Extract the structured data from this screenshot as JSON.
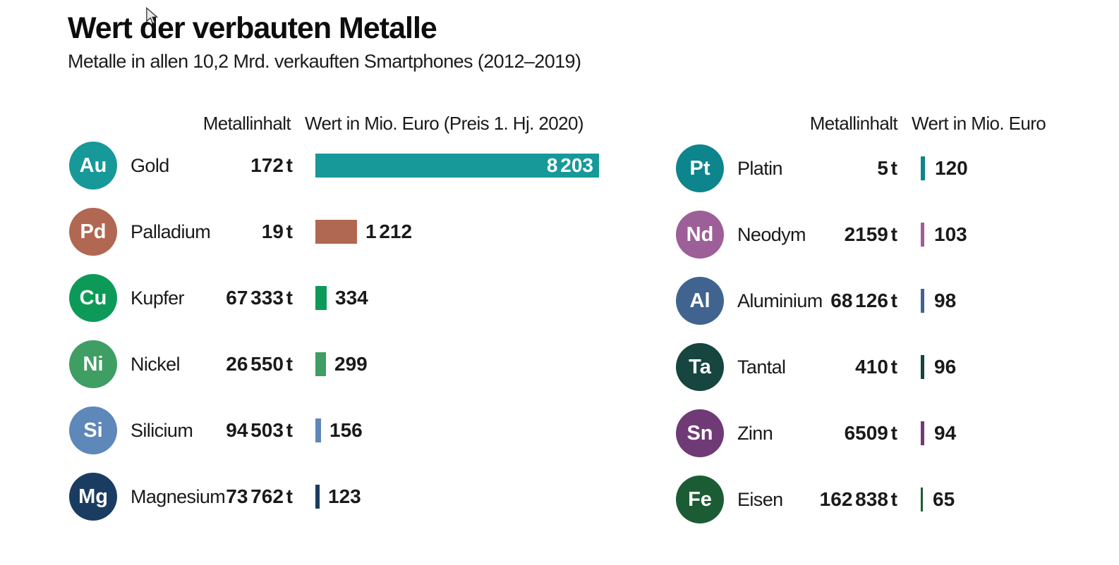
{
  "title": "Wert der verbauten Metalle",
  "subtitle": "Metalle in allen 10,2 Mrd. verkauften Smartphones (2012–2019)",
  "cursor_icon": "mouse-arrow",
  "chart_data": {
    "type": "bar",
    "orientation": "horizontal",
    "value_unit": "Mio. Euro",
    "content_unit": "t",
    "value_axis_max": 8203,
    "grid": false,
    "groups": [
      {
        "header_content": "Metallinhalt",
        "header_value": "Wert in Mio. Euro (Preis 1. Hj. 2020)",
        "rows": [
          {
            "symbol": "Au",
            "name": "Gold",
            "content_t": 172,
            "content_label": "172 t",
            "value": 8203,
            "value_label": "8 203",
            "color": "#17999a",
            "label_inside": true
          },
          {
            "symbol": "Pd",
            "name": "Palladium",
            "content_t": 19,
            "content_label": "19 t",
            "value": 1212,
            "value_label": "1 212",
            "color": "#b16852",
            "label_inside": false
          },
          {
            "symbol": "Cu",
            "name": "Kupfer",
            "content_t": 67333,
            "content_label": "67 333 t",
            "value": 334,
            "value_label": "334",
            "color": "#0d9a58",
            "label_inside": false
          },
          {
            "symbol": "Ni",
            "name": "Nickel",
            "content_t": 26550,
            "content_label": "26 550 t",
            "value": 299,
            "value_label": "299",
            "color": "#3f9e63",
            "label_inside": false
          },
          {
            "symbol": "Si",
            "name": "Silicium",
            "content_t": 94503,
            "content_label": "94 503 t",
            "value": 156,
            "value_label": "156",
            "color": "#5e87ba",
            "label_inside": false
          },
          {
            "symbol": "Mg",
            "name": "Magnesium",
            "content_t": 73762,
            "content_label": "73 762 t",
            "value": 123,
            "value_label": "123",
            "color": "#1b3c61",
            "label_inside": false
          }
        ]
      },
      {
        "header_content": "Metallinhalt",
        "header_value": "Wert in Mio. Euro",
        "rows": [
          {
            "symbol": "Pt",
            "name": "Platin",
            "content_t": 5,
            "content_label": "5 t",
            "value": 120,
            "value_label": "120",
            "color": "#0d858d",
            "label_inside": false
          },
          {
            "symbol": "Nd",
            "name": "Neodym",
            "content_t": 2159,
            "content_label": "2159 t",
            "value": 103,
            "value_label": "103",
            "color": "#9d5f97",
            "label_inside": false
          },
          {
            "symbol": "Al",
            "name": "Aluminium",
            "content_t": 68126,
            "content_label": "68 126 t",
            "value": 98,
            "value_label": "98",
            "color": "#40648f",
            "label_inside": false
          },
          {
            "symbol": "Ta",
            "name": "Tantal",
            "content_t": 410,
            "content_label": "410 t",
            "value": 96,
            "value_label": "96",
            "color": "#17453f",
            "label_inside": false
          },
          {
            "symbol": "Sn",
            "name": "Zinn",
            "content_t": 6509,
            "content_label": "6509 t",
            "value": 94,
            "value_label": "94",
            "color": "#703a76",
            "label_inside": false
          },
          {
            "symbol": "Fe",
            "name": "Eisen",
            "content_t": 162838,
            "content_label": "162 838 t",
            "value": 65,
            "value_label": "65",
            "color": "#1c5c34",
            "label_inside": false
          }
        ]
      }
    ]
  }
}
